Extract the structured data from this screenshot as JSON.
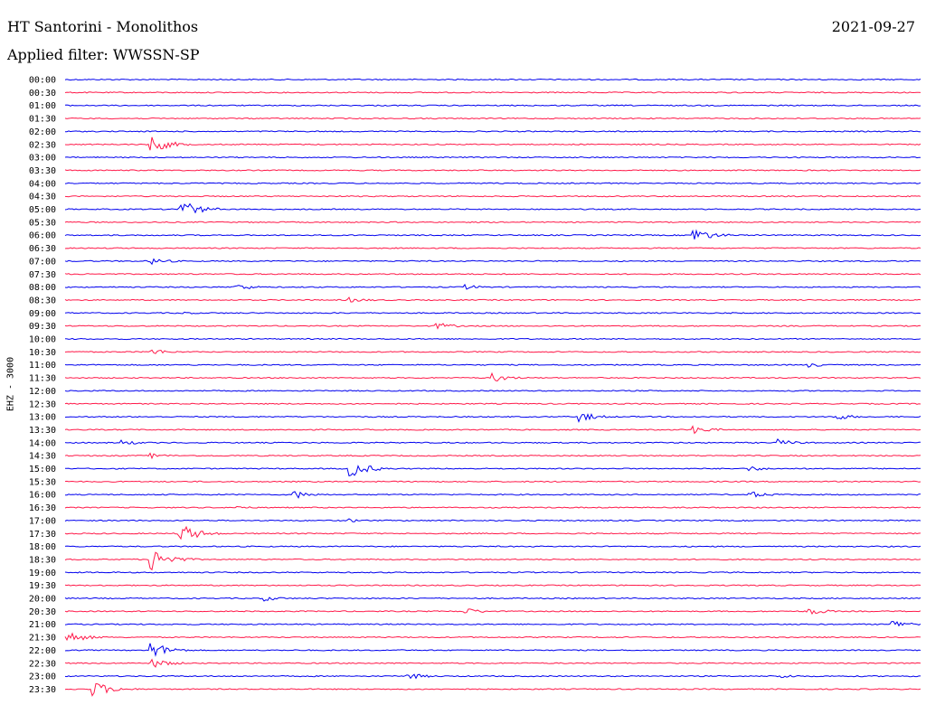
{
  "header": {
    "station": "HT Santorini - Monolithos",
    "date": "2021-09-27",
    "filter": "Applied filter: WWSSN-SP"
  },
  "chart_data": {
    "type": "line",
    "channel_label": "EHZ - 3000",
    "rows": [
      "00:00",
      "00:30",
      "01:00",
      "01:30",
      "02:00",
      "02:30",
      "03:00",
      "03:30",
      "04:00",
      "04:30",
      "05:00",
      "05:30",
      "06:00",
      "06:30",
      "07:00",
      "07:30",
      "08:00",
      "08:30",
      "09:00",
      "09:30",
      "10:00",
      "10:30",
      "11:00",
      "11:30",
      "12:00",
      "12:30",
      "13:00",
      "13:30",
      "14:00",
      "14:30",
      "15:00",
      "15:30",
      "16:00",
      "16:30",
      "17:00",
      "17:30",
      "18:00",
      "18:30",
      "19:00",
      "19:30",
      "20:00",
      "20:30",
      "21:00",
      "21:30",
      "22:00",
      "22:30",
      "23:00",
      "23:30"
    ],
    "colors": {
      "even_rows": "#0000ee",
      "odd_rows": "#ff1a4a"
    },
    "events": [
      {
        "row": 5,
        "minute": 3,
        "amplitude": 10
      },
      {
        "row": 10,
        "minute": 4,
        "amplitude": 12
      },
      {
        "row": 12,
        "minute": 22,
        "amplitude": 9
      },
      {
        "row": 14,
        "minute": 3,
        "amplitude": 4
      },
      {
        "row": 16,
        "minute": 6,
        "amplitude": 4
      },
      {
        "row": 16,
        "minute": 14,
        "amplitude": 3
      },
      {
        "row": 17,
        "minute": 10,
        "amplitude": 3
      },
      {
        "row": 18,
        "minute": 4,
        "amplitude": 2
      },
      {
        "row": 19,
        "minute": 13,
        "amplitude": 4
      },
      {
        "row": 21,
        "minute": 3,
        "amplitude": 4
      },
      {
        "row": 22,
        "minute": 26,
        "amplitude": 3
      },
      {
        "row": 23,
        "minute": 15,
        "amplitude": 5
      },
      {
        "row": 26,
        "minute": 18,
        "amplitude": 6
      },
      {
        "row": 26,
        "minute": 27,
        "amplitude": 4
      },
      {
        "row": 27,
        "minute": 22,
        "amplitude": 5
      },
      {
        "row": 28,
        "minute": 2,
        "amplitude": 3
      },
      {
        "row": 28,
        "minute": 25,
        "amplitude": 4
      },
      {
        "row": 29,
        "minute": 3,
        "amplitude": 3
      },
      {
        "row": 30,
        "minute": 10,
        "amplitude": 10
      },
      {
        "row": 30,
        "minute": 24,
        "amplitude": 3
      },
      {
        "row": 32,
        "minute": 8,
        "amplitude": 5
      },
      {
        "row": 32,
        "minute": 24,
        "amplitude": 4
      },
      {
        "row": 33,
        "minute": 6,
        "amplitude": 2
      },
      {
        "row": 34,
        "minute": 10,
        "amplitude": 2
      },
      {
        "row": 35,
        "minute": 4,
        "amplitude": 12
      },
      {
        "row": 37,
        "minute": 3,
        "amplitude": 14
      },
      {
        "row": 40,
        "minute": 7,
        "amplitude": 3
      },
      {
        "row": 41,
        "minute": 14,
        "amplitude": 4
      },
      {
        "row": 41,
        "minute": 26,
        "amplitude": 5
      },
      {
        "row": 42,
        "minute": 29,
        "amplitude": 5
      },
      {
        "row": 43,
        "minute": 0,
        "amplitude": 8
      },
      {
        "row": 44,
        "minute": 3,
        "amplitude": 10
      },
      {
        "row": 45,
        "minute": 3,
        "amplitude": 6
      },
      {
        "row": 46,
        "minute": 12,
        "amplitude": 4
      },
      {
        "row": 46,
        "minute": 25,
        "amplitude": 3
      },
      {
        "row": 47,
        "minute": 1,
        "amplitude": 9
      }
    ],
    "xlabel": "",
    "ylabel": "",
    "grid": false
  }
}
